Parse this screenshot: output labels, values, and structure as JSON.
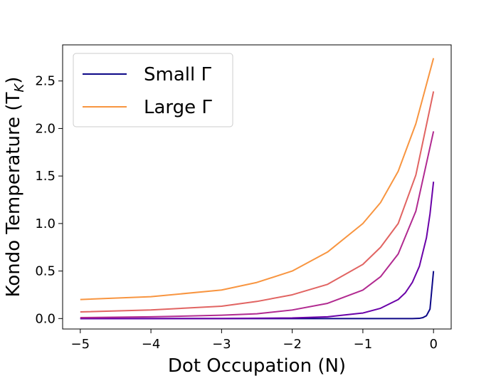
{
  "chart_data": {
    "type": "line",
    "title": "",
    "xlabel": "Dot Occupation (N)",
    "ylabel": "Kondo Temperature (T",
    "ylabel_sub": "K",
    "ylabel_close": ")",
    "xlim": [
      -5.25,
      0.25
    ],
    "ylim": [
      -0.11,
      2.88
    ],
    "xticks": [
      -5,
      -4,
      -3,
      -2,
      -1,
      0
    ],
    "xtick_labels": [
      "−5",
      "−4",
      "−3",
      "−2",
      "−1",
      "0"
    ],
    "yticks": [
      0.0,
      0.5,
      1.0,
      1.5,
      2.0,
      2.5
    ],
    "ytick_labels": [
      "0.0",
      "0.5",
      "1.0",
      "1.5",
      "2.0",
      "2.5"
    ],
    "grid": false,
    "legend_position": "top-left",
    "legend": [
      {
        "label": "Small Γ",
        "color": "#0d0887"
      },
      {
        "label": "Large Γ",
        "color": "#f89540"
      }
    ],
    "series": [
      {
        "color": "#0d0887",
        "x": [
          -5,
          -4,
          -3,
          -2,
          -1,
          -0.5,
          -0.3,
          -0.2,
          -0.15,
          -0.1,
          -0.05,
          0
        ],
        "y": [
          0.0,
          0.0,
          0.0,
          0.0,
          0.0,
          0.0,
          0.0,
          0.002,
          0.01,
          0.03,
          0.1,
          0.5
        ]
      },
      {
        "color": "#6a00a8",
        "x": [
          -5,
          -4,
          -3,
          -2,
          -1.5,
          -1,
          -0.75,
          -0.5,
          -0.4,
          -0.3,
          -0.2,
          -0.1,
          -0.05,
          0
        ],
        "y": [
          0.0,
          0.0,
          0.001,
          0.006,
          0.018,
          0.058,
          0.108,
          0.2,
          0.27,
          0.38,
          0.55,
          0.85,
          1.1,
          1.44
        ]
      },
      {
        "color": "#b12a90",
        "x": [
          -5,
          -4,
          -3,
          -2.5,
          -2,
          -1.5,
          -1,
          -0.75,
          -0.5,
          -0.25,
          0
        ],
        "y": [
          0.01,
          0.018,
          0.035,
          0.05,
          0.09,
          0.16,
          0.3,
          0.44,
          0.68,
          1.13,
          1.97
        ]
      },
      {
        "color": "#e16462",
        "x": [
          -5,
          -4,
          -3,
          -2.5,
          -2,
          -1.5,
          -1,
          -0.75,
          -0.5,
          -0.25,
          0
        ],
        "y": [
          0.07,
          0.09,
          0.13,
          0.18,
          0.25,
          0.36,
          0.57,
          0.75,
          1.0,
          1.51,
          2.39
        ]
      },
      {
        "color": "#f89540",
        "x": [
          -5,
          -4,
          -3,
          -2.5,
          -2,
          -1.5,
          -1,
          -0.75,
          -0.5,
          -0.25,
          0
        ],
        "y": [
          0.2,
          0.23,
          0.3,
          0.38,
          0.5,
          0.7,
          1.0,
          1.22,
          1.55,
          2.05,
          2.74
        ]
      }
    ]
  }
}
